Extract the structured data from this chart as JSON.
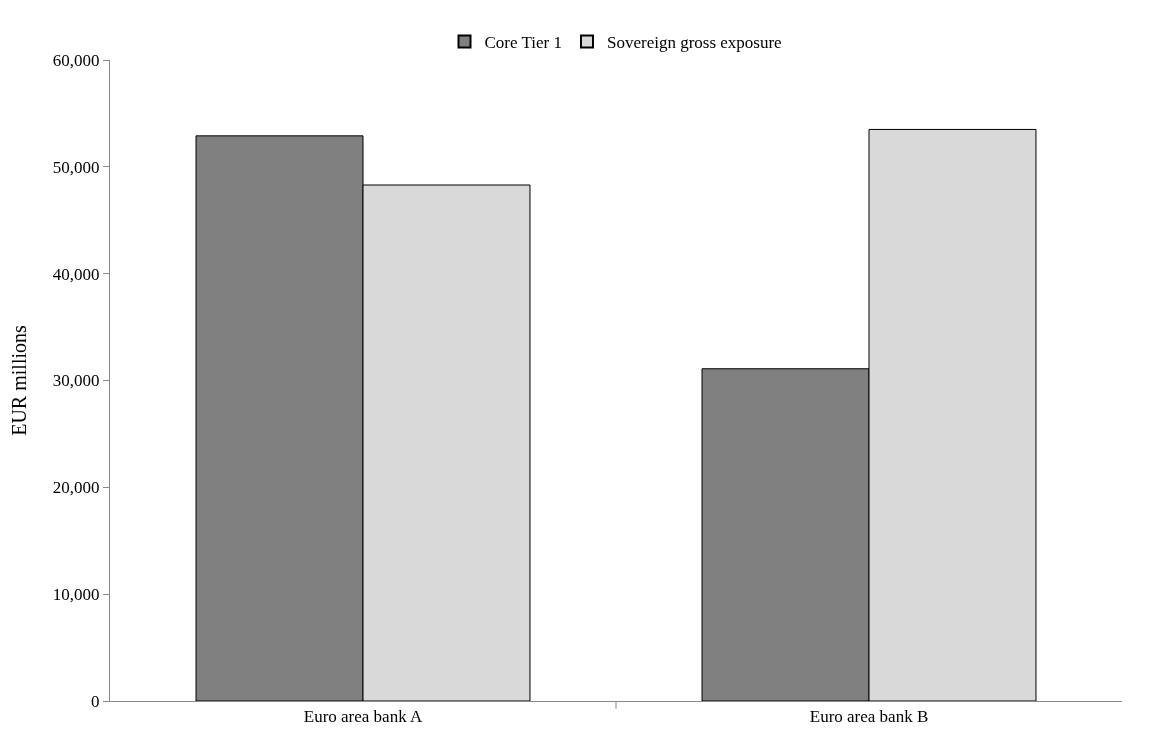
{
  "chart_data": {
    "type": "bar",
    "ylabel": "EUR millions",
    "categories": [
      "Euro area bank A",
      "Euro area bank B"
    ],
    "series": [
      {
        "name": "Core Tier 1",
        "color": "#808080",
        "values": [
          52900,
          31100
        ]
      },
      {
        "name": "Sovereign gross exposure",
        "color": "#d9d9d9",
        "values": [
          48300,
          53500
        ]
      }
    ],
    "ylim": [
      0,
      60000
    ],
    "yticks": [
      {
        "value": 0,
        "label": "0"
      },
      {
        "value": 10000,
        "label": "10,000"
      },
      {
        "value": 20000,
        "label": "20,000"
      },
      {
        "value": 30000,
        "label": "30,000"
      },
      {
        "value": 40000,
        "label": "40,000"
      },
      {
        "value": 50000,
        "label": "50,000"
      },
      {
        "value": 60000,
        "label": "60,000"
      }
    ],
    "legend": "top"
  }
}
